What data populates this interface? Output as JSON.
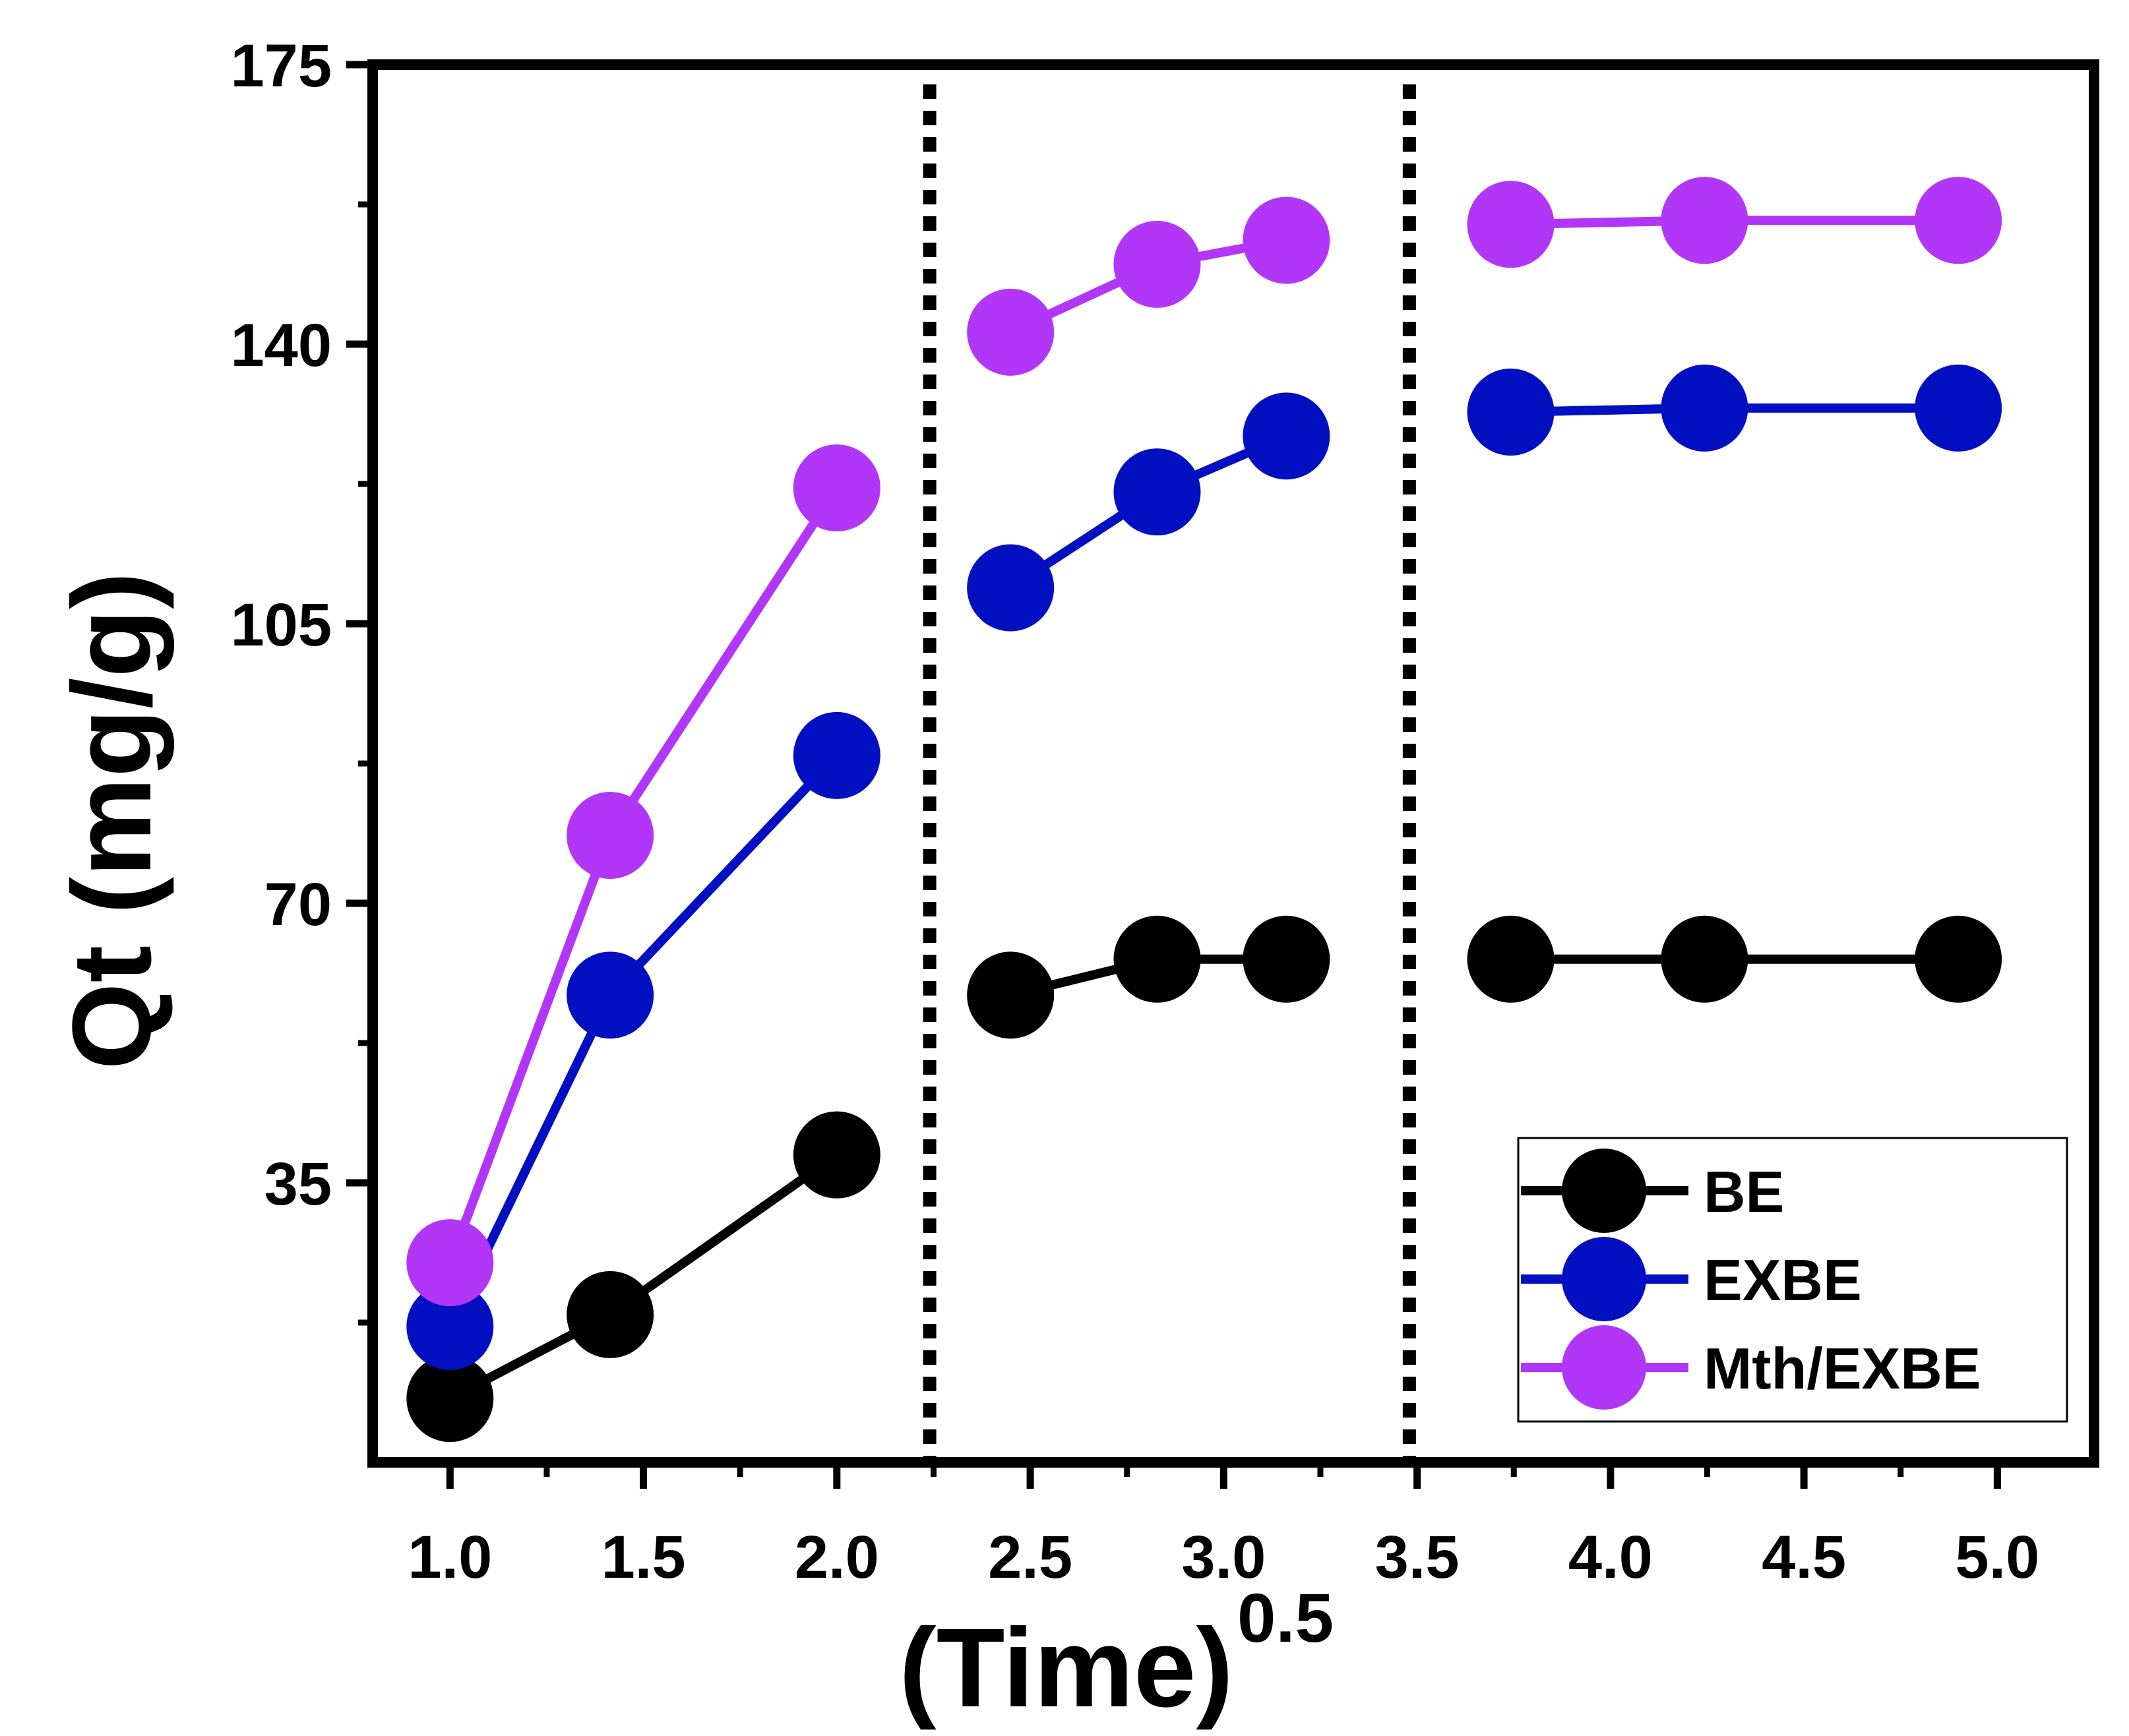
{
  "chart_data": {
    "type": "line",
    "title": "",
    "xlabel": "(Time)",
    "xlabel_superscript": "0.5",
    "ylabel": "Qt (mg/g)",
    "xlim": [
      0.8,
      5.25
    ],
    "ylim": [
      0,
      175
    ],
    "xticks": [
      {
        "value": 1.0,
        "label": "1.0"
      },
      {
        "value": 1.5,
        "label": "1.5"
      },
      {
        "value": 2.0,
        "label": "2.0"
      },
      {
        "value": 2.5,
        "label": "2.5"
      },
      {
        "value": 3.0,
        "label": "3.0"
      },
      {
        "value": 3.5,
        "label": "3.5"
      },
      {
        "value": 4.0,
        "label": "4.0"
      },
      {
        "value": 4.5,
        "label": "4.5"
      },
      {
        "value": 5.0,
        "label": "5.0"
      }
    ],
    "yticks": [
      {
        "value": 35,
        "label": "35"
      },
      {
        "value": 70,
        "label": "70"
      },
      {
        "value": 105,
        "label": "105"
      },
      {
        "value": 140,
        "label": "140"
      },
      {
        "value": 175,
        "label": "175"
      }
    ],
    "divider_lines_x": [
      2.24,
      3.48
    ],
    "legend_position": "bottom-right",
    "series": [
      {
        "name": "BE",
        "color": "#000000",
        "segments": [
          [
            [
              1.0,
              8.0
            ],
            [
              1.414,
              18.5
            ],
            [
              2.0,
              38.5
            ]
          ],
          [
            [
              2.449,
              58.5
            ],
            [
              2.828,
              63.0
            ],
            [
              3.162,
              63.0
            ]
          ],
          [
            [
              3.742,
              63.0
            ],
            [
              4.243,
              63.0
            ],
            [
              4.899,
              63.0
            ]
          ]
        ]
      },
      {
        "name": "EXBE",
        "color": "#0210c2",
        "segments": [
          [
            [
              1.0,
              17.0
            ],
            [
              1.414,
              58.5
            ],
            [
              2.0,
              88.5
            ]
          ],
          [
            [
              2.449,
              109.5
            ],
            [
              2.828,
              121.5
            ],
            [
              3.162,
              128.5
            ]
          ],
          [
            [
              3.742,
              131.5
            ],
            [
              4.243,
              132.0
            ],
            [
              4.899,
              132.0
            ]
          ]
        ]
      },
      {
        "name": "Mth/EXBE",
        "color": "#b236f8",
        "segments": [
          [
            [
              1.0,
              25.0
            ],
            [
              1.414,
              78.5
            ],
            [
              2.0,
              122.0
            ]
          ],
          [
            [
              2.449,
              141.5
            ],
            [
              2.828,
              150.0
            ],
            [
              3.162,
              153.0
            ]
          ],
          [
            [
              3.742,
              155.0
            ],
            [
              4.243,
              155.5
            ],
            [
              4.899,
              155.5
            ]
          ]
        ]
      }
    ]
  }
}
